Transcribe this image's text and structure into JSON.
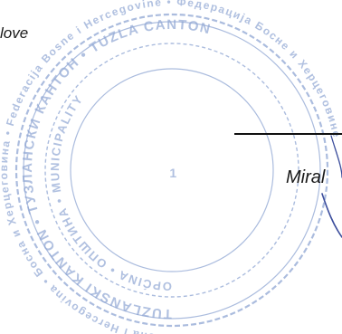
{
  "document": {
    "fragment_top": "love",
    "signatory_fragment": "Miral"
  },
  "seal": {
    "outer_ring_text": "Bosna i Hercegovina • Босна и Херцеговина • Federacija Bosne i Hercegovine • Федерација Босне и Херцеговине",
    "middle_ring_text": "TUZLANSKI KANTON • ТУЗЛАНСКИ КАНТОН • TUZLA CANTON",
    "inner_ring_text": "OPĆINA • ОПШТИНА • MUNICIPALITY",
    "center_text": "1",
    "ink_color": "#8fa6d3"
  },
  "colors": {
    "text": "#1a1a1a",
    "signature_ink": "#3b4d9c",
    "line": "#111111"
  }
}
